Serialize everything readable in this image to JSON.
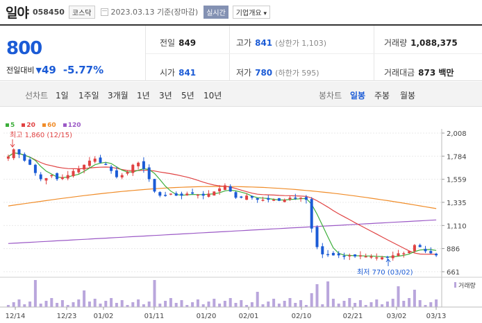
{
  "header": {
    "name": "일야",
    "code": "058450",
    "market": "코스닥",
    "date": "2023.03.13 기준(장마감)",
    "realtime": "실시간",
    "company_info": "기업개요"
  },
  "quote": {
    "price": "800",
    "change_label": "전일대비",
    "change_value": "49",
    "change_pct": "-5.77%",
    "prev_label": "전일",
    "prev": "849",
    "open_label": "시가",
    "open": "841",
    "high_label": "고가",
    "high": "841",
    "upper_limit": "(상한가 1,103)",
    "low_label": "저가",
    "low": "780",
    "lower_limit": "(하한가 595)",
    "volume_label": "거래량",
    "volume": "1,088,375",
    "amount_label": "거래대금",
    "amount": "873 백만"
  },
  "tabs": {
    "line": [
      "선차트",
      "1일",
      "1주일",
      "3개월",
      "1년",
      "3년",
      "5년",
      "10년"
    ],
    "candle": [
      "봉차트",
      "일봉",
      "주봉",
      "월봉"
    ],
    "selected": "일봉"
  },
  "legend": [
    {
      "label": "5",
      "color": "#3cae3a"
    },
    {
      "label": "20",
      "color": "#e04242"
    },
    {
      "label": "60",
      "color": "#f08c28"
    },
    {
      "label": "120",
      "color": "#9b59c6"
    }
  ],
  "chart_data": {
    "type": "candlestick",
    "ylabels": [
      "2,008",
      "1,784",
      "1,559",
      "1,335",
      "1,110",
      "886",
      "661"
    ],
    "yticks": [
      2008,
      1784,
      1559,
      1335,
      1110,
      886,
      661
    ],
    "xlabels": [
      "12/14",
      "12/23",
      "01/02",
      "01/11",
      "01/20",
      "02/01",
      "02/10",
      "02/21",
      "03/02",
      "03/13"
    ],
    "volume_label": "거래량",
    "max_annotation": "최고 1,860 (12/15)",
    "min_annotation": "최저 770 (03/02)",
    "colors": {
      "up": "#e04242",
      "down": "#1b5bd6",
      "ma5": "#3cae3a",
      "ma20": "#e04242",
      "ma60": "#f08c28",
      "ma120": "#9b59c6",
      "volume": "#b9a6dc"
    }
  }
}
